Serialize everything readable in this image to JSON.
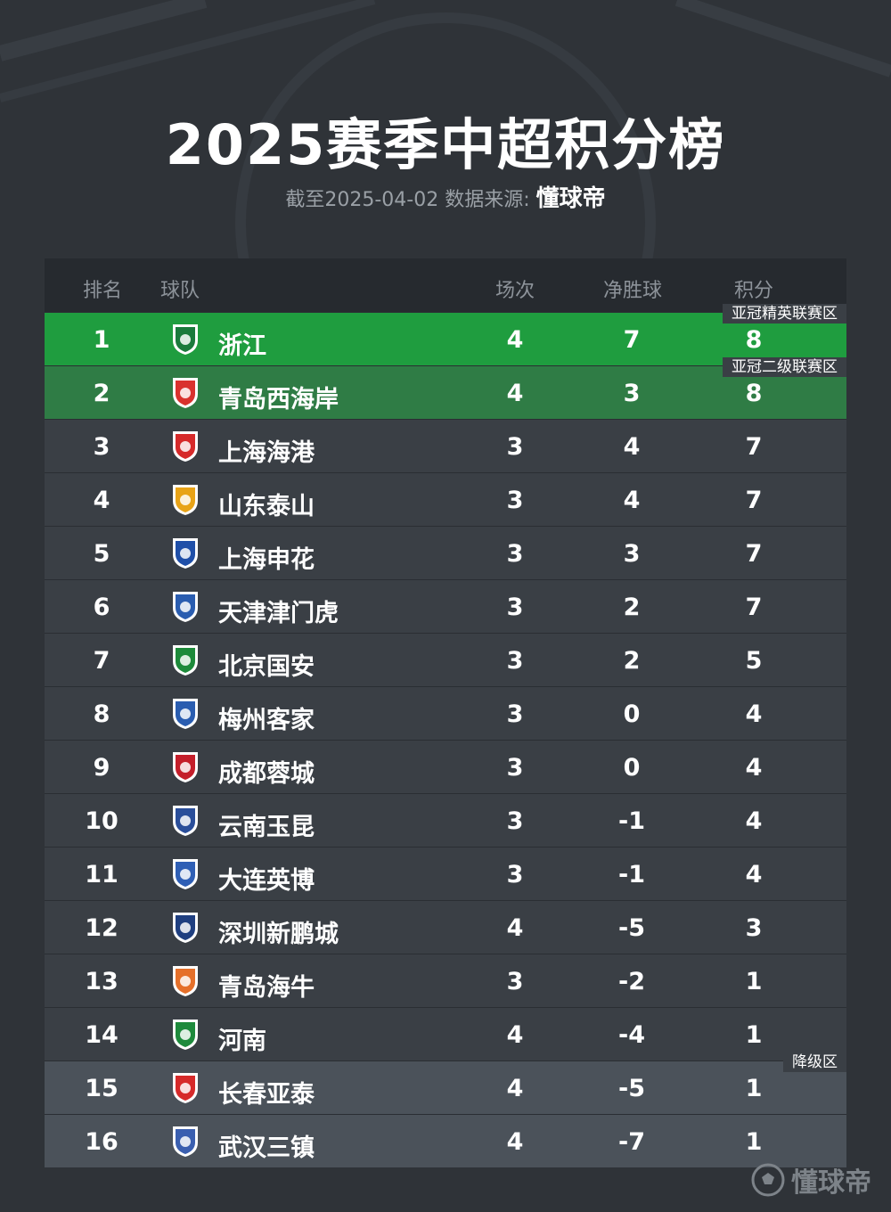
{
  "title": "2025赛季中超积分榜",
  "subtitle": {
    "date_text": "截至2025-04-02 数据来源:",
    "source": "懂球帝"
  },
  "headers": {
    "rank": "排名",
    "team": "球队",
    "played": "场次",
    "goal_diff": "净胜球",
    "points": "积分"
  },
  "zones": {
    "afc_elite": "亚冠精英联赛区",
    "afc_two": "亚冠二级联赛区",
    "relegation": "降级区"
  },
  "rows": [
    {
      "rank": "1",
      "team": "浙江",
      "played": "4",
      "gd": "7",
      "pts": "8",
      "logo_icon": "zhejiang-logo-icon",
      "logo_color": "#1a7a3c"
    },
    {
      "rank": "2",
      "team": "青岛西海岸",
      "played": "4",
      "gd": "3",
      "pts": "8",
      "logo_icon": "qingdao-west-coast-logo-icon",
      "logo_color": "#d9322e"
    },
    {
      "rank": "3",
      "team": "上海海港",
      "played": "3",
      "gd": "4",
      "pts": "7",
      "logo_icon": "shanghai-port-logo-icon",
      "logo_color": "#d62a2a"
    },
    {
      "rank": "4",
      "team": "山东泰山",
      "played": "3",
      "gd": "4",
      "pts": "7",
      "logo_icon": "shandong-taishan-logo-icon",
      "logo_color": "#e8a317"
    },
    {
      "rank": "5",
      "team": "上海申花",
      "played": "3",
      "gd": "3",
      "pts": "7",
      "logo_icon": "shanghai-shenhua-logo-icon",
      "logo_color": "#1f4fa8"
    },
    {
      "rank": "6",
      "team": "天津津门虎",
      "played": "3",
      "gd": "2",
      "pts": "7",
      "logo_icon": "tianjin-jinmen-tiger-logo-icon",
      "logo_color": "#2a5db0"
    },
    {
      "rank": "7",
      "team": "北京国安",
      "played": "3",
      "gd": "2",
      "pts": "5",
      "logo_icon": "beijing-guoan-logo-icon",
      "logo_color": "#1d8a3a"
    },
    {
      "rank": "8",
      "team": "梅州客家",
      "played": "3",
      "gd": "0",
      "pts": "4",
      "logo_icon": "meizhou-hakka-logo-icon",
      "logo_color": "#2a5db0"
    },
    {
      "rank": "9",
      "team": "成都蓉城",
      "played": "3",
      "gd": "0",
      "pts": "4",
      "logo_icon": "chengdu-rongcheng-logo-icon",
      "logo_color": "#c41e2a"
    },
    {
      "rank": "10",
      "team": "云南玉昆",
      "played": "3",
      "gd": "-1",
      "pts": "4",
      "logo_icon": "yunnan-yukun-logo-icon",
      "logo_color": "#2a4e9a"
    },
    {
      "rank": "11",
      "team": "大连英博",
      "played": "3",
      "gd": "-1",
      "pts": "4",
      "logo_icon": "dalian-yingbo-logo-icon",
      "logo_color": "#2f5fb5"
    },
    {
      "rank": "12",
      "team": "深圳新鹏城",
      "played": "4",
      "gd": "-5",
      "pts": "3",
      "logo_icon": "shenzhen-peng-city-logo-icon",
      "logo_color": "#1f3f80"
    },
    {
      "rank": "13",
      "team": "青岛海牛",
      "played": "3",
      "gd": "-2",
      "pts": "1",
      "logo_icon": "qingdao-hainiu-logo-icon",
      "logo_color": "#e5702a"
    },
    {
      "rank": "14",
      "team": "河南",
      "played": "4",
      "gd": "-4",
      "pts": "1",
      "logo_icon": "henan-logo-icon",
      "logo_color": "#1e8a3c"
    },
    {
      "rank": "15",
      "team": "长春亚泰",
      "played": "4",
      "gd": "-5",
      "pts": "1",
      "logo_icon": "changchun-yatai-logo-icon",
      "logo_color": "#d62a2a"
    },
    {
      "rank": "16",
      "team": "武汉三镇",
      "played": "4",
      "gd": "-7",
      "pts": "1",
      "logo_icon": "wuhan-three-towns-logo-icon",
      "logo_color": "#3a5fb0"
    }
  ],
  "watermark": "懂球帝",
  "colors": {
    "background": "#2f3338",
    "afc_elite_row": "#1f9d3f",
    "afc_two_row": "#2f7c45",
    "relegation_row": "#4b525a"
  }
}
